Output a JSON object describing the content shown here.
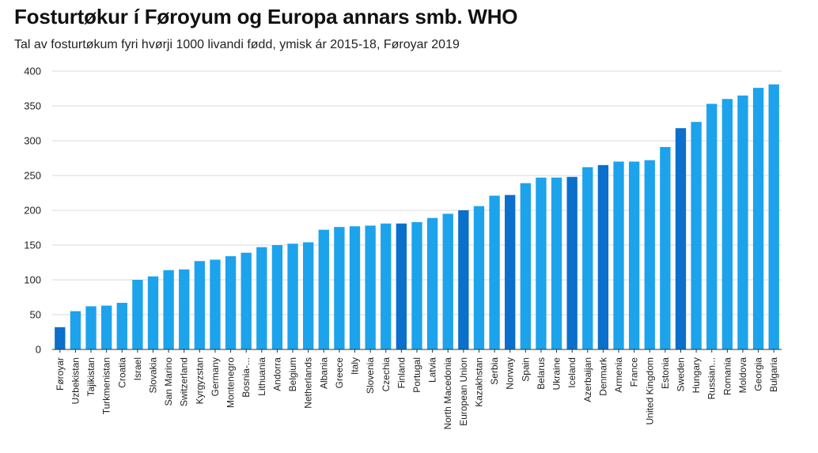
{
  "chart_data": {
    "type": "bar",
    "title": "Fosturtøkur í Føroyum og Europa annars smb. WHO",
    "subtitle": "Tal av fosturtøkum fyri hvørji 1000 livandi fødd, ymisk ár 2015-18, Føroyar 2019",
    "ylim": [
      0,
      400
    ],
    "yticks": [
      0,
      50,
      100,
      150,
      200,
      250,
      300,
      350,
      400
    ],
    "grid": true,
    "colors": {
      "default": "#1ca3ec",
      "highlight": "#0b6fcc",
      "grid": "#d9d9d9",
      "axis": "#333333"
    },
    "categories": [
      "Føroyar",
      "Uzbekistan",
      "Tajikistan",
      "Turkmenistan",
      "Croatia",
      "Israel",
      "Slovakia",
      "San Marino",
      "Switzerland",
      "Kyrgyzstan",
      "Germany",
      "Montenegro",
      "Bosnia-...",
      "Lithuania",
      "Andorra",
      "Belgium",
      "Netherlands",
      "Albania",
      "Greece",
      "Italy",
      "Slovenia",
      "Czechia",
      "Finland",
      "Portugal",
      "Latvia",
      "North Macedonia",
      "European Union",
      "Kazakhstan",
      "Serbia",
      "Norway",
      "Spain",
      "Belarus",
      "Ukraine",
      "Iceland",
      "Azerbaijan",
      "Denmark",
      "Armenia",
      "France",
      "United Kingdom",
      "Estonia",
      "Sweden",
      "Hungary",
      "Russian...",
      "Romania",
      "Moldova",
      "Georgia",
      "Bulgaria"
    ],
    "values": [
      32,
      55,
      62,
      63,
      67,
      100,
      105,
      114,
      115,
      127,
      129,
      134,
      139,
      147,
      150,
      152,
      154,
      172,
      176,
      177,
      178,
      181,
      181,
      183,
      189,
      195,
      200,
      206,
      221,
      222,
      239,
      247,
      247,
      248,
      262,
      265,
      270,
      270,
      272,
      291,
      318,
      327,
      353,
      360,
      365,
      376,
      381
    ],
    "highlighted": [
      "Føroyar",
      "Finland",
      "European Union",
      "Norway",
      "Iceland",
      "Denmark",
      "Sweden"
    ]
  }
}
